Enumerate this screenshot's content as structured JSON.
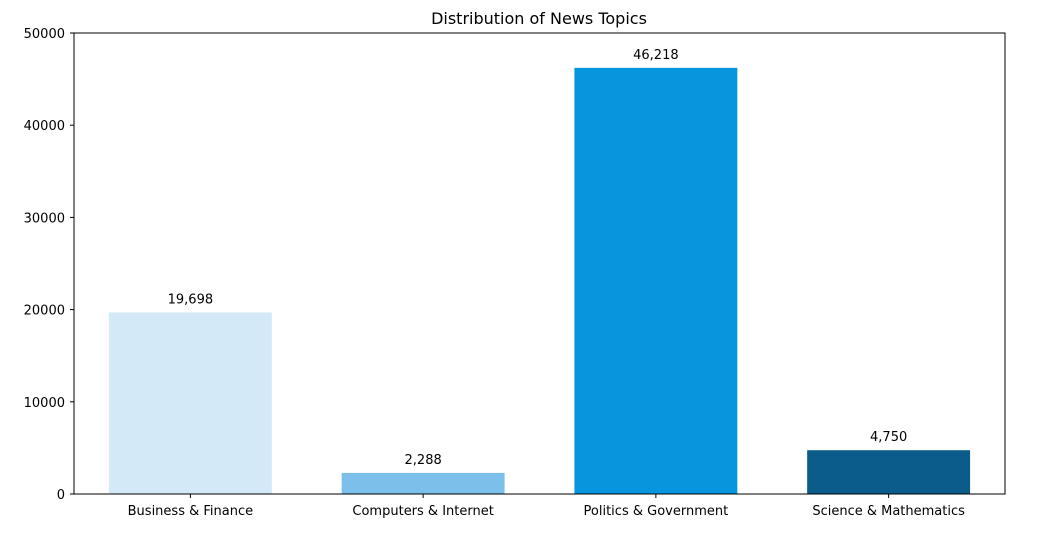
{
  "chart_data": {
    "type": "bar",
    "title": "Distribution of News Topics",
    "xlabel": "",
    "ylabel": "",
    "categories": [
      "Business & Finance",
      "Computers & Internet",
      "Politics & Government",
      "Science & Mathematics"
    ],
    "values": [
      19698,
      2288,
      46218,
      4750
    ],
    "value_labels": [
      "19,698",
      "2,288",
      "46,218",
      "4,750"
    ],
    "colors": [
      "#d4e9f7",
      "#7bbfea",
      "#0795dd",
      "#0b5c8a"
    ],
    "ylim": [
      0,
      50000
    ],
    "yticks": [
      0,
      10000,
      20000,
      30000,
      40000,
      50000
    ],
    "ytick_labels": [
      "0",
      "10000",
      "20000",
      "30000",
      "40000",
      "50000"
    ],
    "grid": false,
    "legend": "none"
  }
}
